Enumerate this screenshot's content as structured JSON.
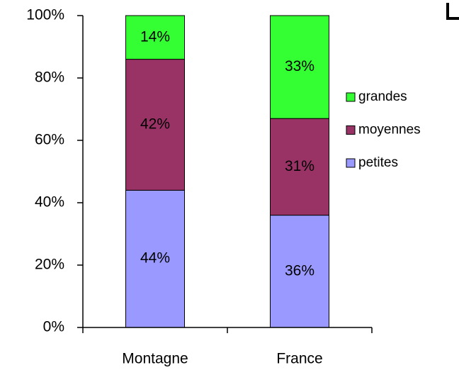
{
  "chart_data": {
    "type": "stacked_bar",
    "categories": [
      "Montagne",
      "France"
    ],
    "series": [
      {
        "name": "petites",
        "color": "#9999ff",
        "values": [
          44,
          36
        ],
        "value_labels": [
          "44%",
          "36%"
        ]
      },
      {
        "name": "moyennes",
        "color": "#993366",
        "values": [
          42,
          31
        ],
        "value_labels": [
          "42%",
          "31%"
        ]
      },
      {
        "name": "grandes",
        "color": "#33ff33",
        "values": [
          14,
          33
        ],
        "value_labels": [
          "14%",
          "33%"
        ]
      }
    ],
    "ylim": [
      0,
      100
    ],
    "yticks": [
      {
        "value": 0,
        "label": "0%"
      },
      {
        "value": 20,
        "label": "20%"
      },
      {
        "value": 40,
        "label": "40%"
      },
      {
        "value": 60,
        "label": "60%"
      },
      {
        "value": 80,
        "label": "80%"
      },
      {
        "value": 100,
        "label": "100%"
      }
    ],
    "legend": "right"
  }
}
